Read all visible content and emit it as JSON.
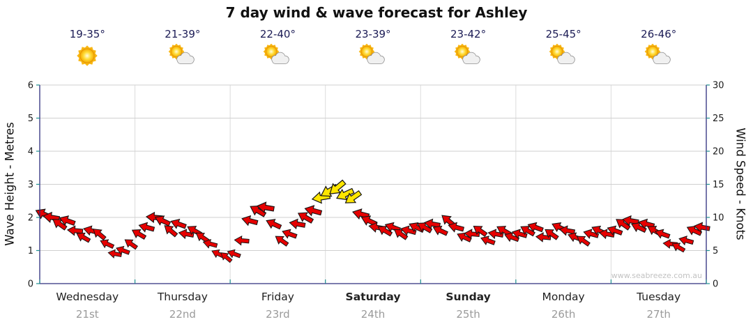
{
  "title": "7 day wind & wave forecast for Ashley",
  "axes": {
    "left_label": "Wave Height - Metres",
    "right_label": "Wind Speed - Knots"
  },
  "days": [
    {
      "name": "Wednesday",
      "date": "21st",
      "temp": "19-35°",
      "icon": "sunny",
      "weekend": false
    },
    {
      "name": "Thursday",
      "date": "22nd",
      "temp": "21-39°",
      "icon": "partly-cloudy",
      "weekend": false
    },
    {
      "name": "Friday",
      "date": "23rd",
      "temp": "22-40°",
      "icon": "partly-cloudy",
      "weekend": false
    },
    {
      "name": "Saturday",
      "date": "24th",
      "temp": "23-39°",
      "icon": "partly-cloudy",
      "weekend": true
    },
    {
      "name": "Sunday",
      "date": "25th",
      "temp": "23-42°",
      "icon": "partly-cloudy",
      "weekend": true
    },
    {
      "name": "Monday",
      "date": "26th",
      "temp": "25-45°",
      "icon": "partly-cloudy",
      "weekend": false
    },
    {
      "name": "Tuesday",
      "date": "27th",
      "temp": "26-46°",
      "icon": "partly-cloudy",
      "weekend": false
    }
  ],
  "chart_data": {
    "type": "scatter",
    "marker": "wind-direction-arrow",
    "title": "7 day wind & wave forecast for Ashley",
    "categories": [
      "Wednesday 21st",
      "Thursday 22nd",
      "Friday 23rd",
      "Saturday 24th",
      "Sunday 25th",
      "Monday 26th",
      "Tuesday 27th"
    ],
    "points_per_day": 12,
    "left_axis": {
      "label": "Wave Height - Metres",
      "min": 0,
      "max": 6,
      "ticks": [
        0,
        1,
        2,
        3,
        4,
        5,
        6
      ]
    },
    "right_axis": {
      "label": "Wind Speed - Knots",
      "min": 0,
      "max": 30,
      "ticks": [
        0,
        5,
        10,
        15,
        20,
        25,
        30
      ]
    },
    "grid": true,
    "legend": "none",
    "watermark": "www.seabreeze.com.au",
    "arrow_colors": {
      "red": "#E60000",
      "yellow": "#FFE600",
      "yellow_threshold_knots": 12.5
    },
    "series": [
      {
        "name": "Wind (arrows, knots on right axis; wave height equivalent on left axis)",
        "wind_speed_knots": [
          10.5,
          10,
          9,
          9.5,
          8,
          7,
          8,
          7.5,
          6,
          4.5,
          5,
          6,
          7.5,
          8.5,
          10,
          9.5,
          8,
          9,
          7.5,
          8,
          7,
          6,
          4.5,
          4,
          4.5,
          6.5,
          9.5,
          11,
          11.5,
          9,
          6.5,
          7.5,
          9,
          10,
          11,
          13,
          14,
          14.5,
          13.5,
          13,
          10.5,
          9.5,
          8.5,
          8,
          8.5,
          7.5,
          8,
          8.5,
          8.5,
          9,
          8,
          9.5,
          8.5,
          7,
          7.5,
          8,
          6.5,
          7.5,
          8,
          7,
          7.5,
          8,
          8.5,
          7,
          7.5,
          8.5,
          8,
          7,
          6.5,
          7.5,
          8,
          7.5,
          8,
          9,
          9.5,
          8.5,
          9,
          8,
          7.5,
          6,
          5.5,
          6.5,
          8,
          8.5
        ],
        "wind_dir_deg": [
          205,
          190,
          215,
          200,
          185,
          210,
          195,
          220,
          205,
          190,
          200,
          215,
          210,
          195,
          185,
          205,
          220,
          200,
          190,
          210,
          215,
          195,
          205,
          220,
          200,
          185,
          195,
          210,
          190,
          205,
          215,
          200,
          190,
          210,
          195,
          170,
          150,
          140,
          155,
          145,
          195,
          205,
          190,
          210,
          200,
          215,
          195,
          205,
          210,
          190,
          205,
          220,
          195,
          205,
          185,
          215,
          200,
          190,
          210,
          200,
          195,
          210,
          200,
          185,
          215,
          205,
          190,
          200,
          215,
          195,
          205,
          190,
          200,
          215,
          190,
          205,
          195,
          210,
          200,
          185,
          210,
          195,
          205,
          190
        ]
      }
    ]
  }
}
